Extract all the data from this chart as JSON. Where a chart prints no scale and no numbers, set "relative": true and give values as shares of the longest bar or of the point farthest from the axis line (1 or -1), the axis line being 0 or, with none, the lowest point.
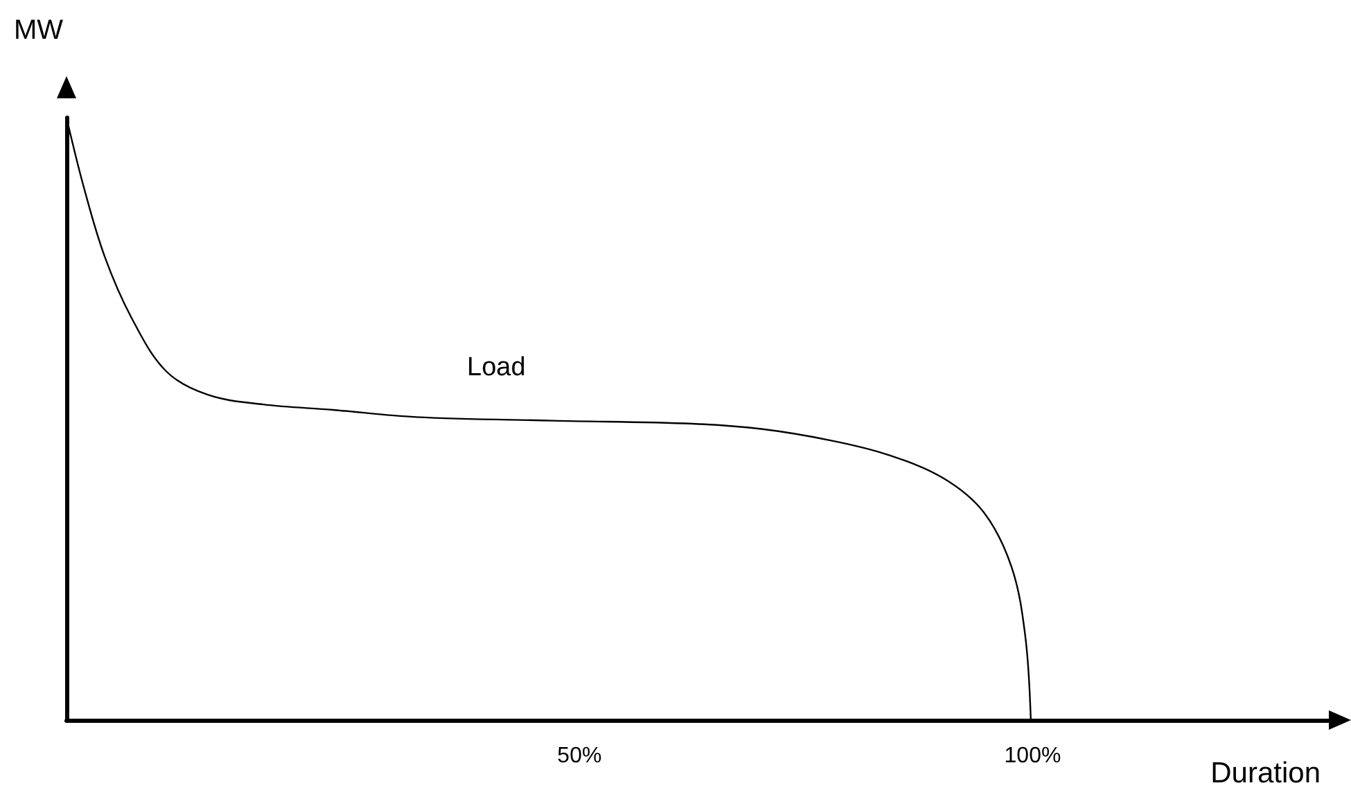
{
  "chart_data": {
    "type": "line",
    "relative": true,
    "xlabel": "Duration",
    "ylabel": "MW",
    "xlim": [
      -6.6,
      133.6
    ],
    "xticks": [
      {
        "value": 50,
        "label": "50%"
      },
      {
        "value": 100,
        "label": "100%"
      }
    ],
    "x": [
      -6.6,
      -4.7,
      -2.4,
      0.6,
      4.4,
      9,
      15.1,
      22.8,
      32,
      47.2,
      62.5,
      70.2,
      77.8,
      83.9,
      90.1,
      94.6,
      97.7,
      99.2,
      99.8
    ],
    "series": [
      {
        "color": "#000000",
        "values": [
          1,
          0.885,
          0.77,
          0.667,
          0.579,
          0.54,
          0.524,
          0.515,
          0.503,
          0.497,
          0.492,
          0.483,
          0.464,
          0.441,
          0.402,
          0.345,
          0.253,
          0.138,
          0
        ]
      }
    ],
    "annotations": [
      "Load"
    ],
    "grid": false
  }
}
